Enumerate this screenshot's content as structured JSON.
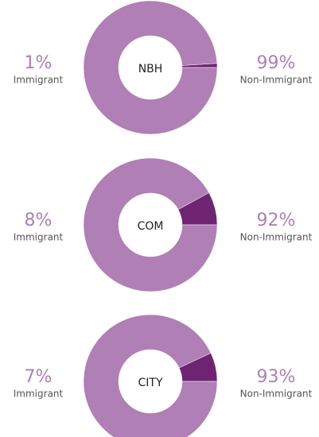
{
  "chart_data": [
    {
      "type": "donut",
      "title": "NBH",
      "categories": [
        "Immigrant",
        "Non-Immigrant"
      ],
      "values": [
        1,
        99
      ],
      "value_labels": [
        "1%",
        "99%"
      ],
      "colors": [
        "#6e2470",
        "#b07fb5"
      ]
    },
    {
      "type": "donut",
      "title": "COM",
      "categories": [
        "Immigrant",
        "Non-Immigrant"
      ],
      "values": [
        8,
        92
      ],
      "value_labels": [
        "8%",
        "92%"
      ],
      "colors": [
        "#6e2470",
        "#b07fb5"
      ]
    },
    {
      "type": "donut",
      "title": "CITY",
      "categories": [
        "Immigrant",
        "Non-Immigrant"
      ],
      "values": [
        7,
        93
      ],
      "value_labels": [
        "7%",
        "93%"
      ],
      "colors": [
        "#6e2470",
        "#b07fb5"
      ]
    }
  ]
}
